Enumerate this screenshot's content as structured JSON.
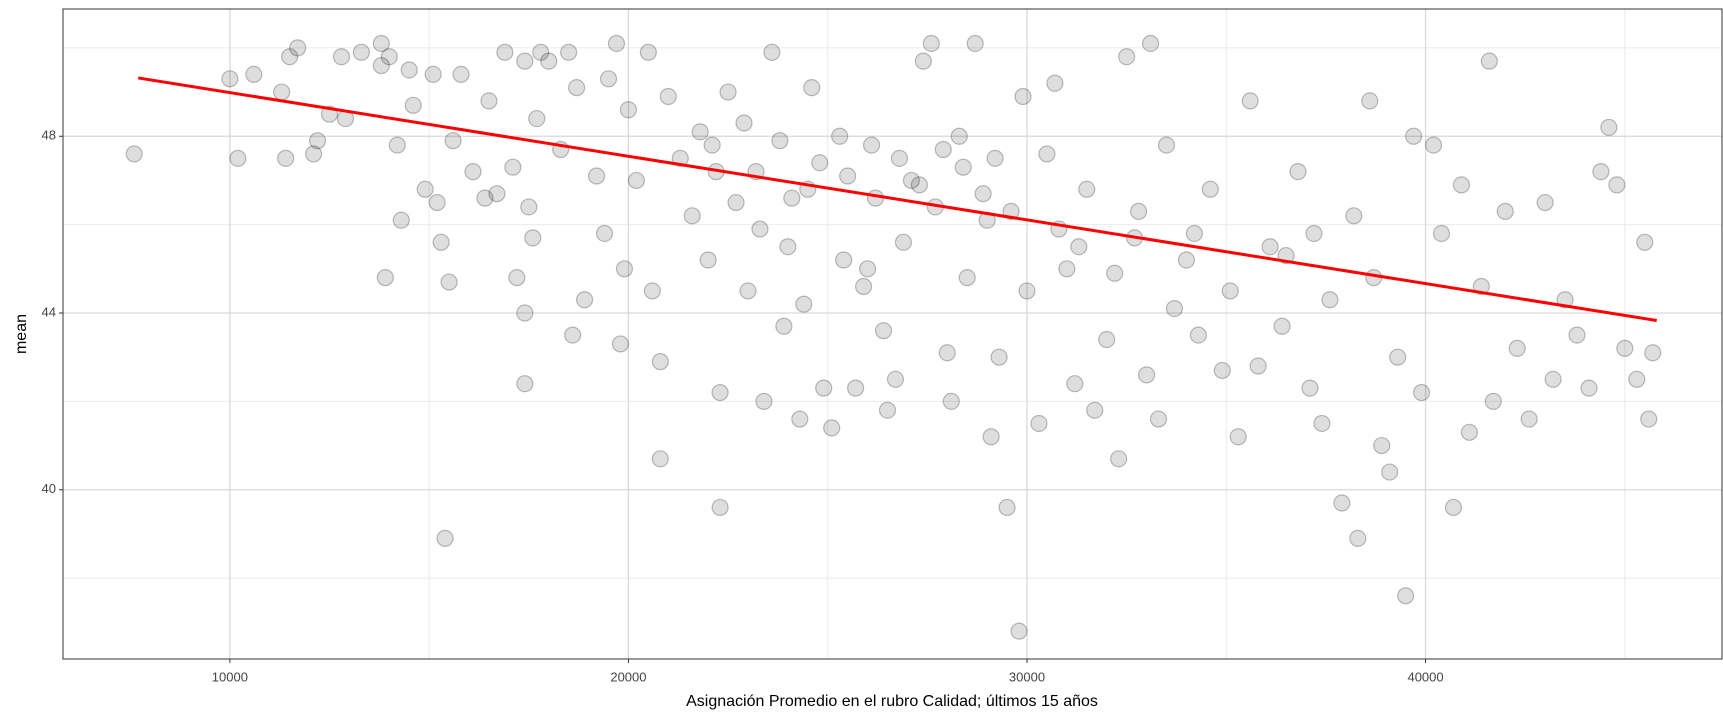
{
  "chart_data": {
    "type": "scatter",
    "xlabel": "Asignación Promedio en el rubro Calidad; últimos 15 años",
    "ylabel": "mean",
    "xlim": [
      5813,
      47438
    ],
    "ylim": [
      36.17,
      50.88
    ],
    "xticks": [
      10000,
      20000,
      30000,
      40000
    ],
    "yticks": [
      40,
      44,
      48
    ],
    "x_minor_grid": [
      15000,
      25000,
      35000,
      45000
    ],
    "y_minor_grid": [
      38,
      42,
      46,
      50
    ],
    "grid": true,
    "color": "#000000",
    "x": [
      7600,
      10000,
      10200,
      10600,
      11300,
      11400,
      11500,
      11700,
      12100,
      12200,
      12500,
      12800,
      12900,
      13300,
      13800,
      13800,
      13900,
      14000,
      14200,
      14300,
      14500,
      14600,
      14900,
      15100,
      15200,
      15300,
      15400,
      15500,
      15600,
      15800,
      16100,
      16400,
      16500,
      16700,
      16900,
      17100,
      17200,
      17400,
      17400,
      17400,
      17500,
      17600,
      17700,
      17800,
      18000,
      18300,
      18500,
      18600,
      18700,
      18900,
      19200,
      19400,
      19500,
      19700,
      19800,
      19900,
      20000,
      20200,
      20500,
      20600,
      20800,
      20800,
      21000,
      21300,
      21600,
      21800,
      22000,
      22200,
      22300,
      22300,
      22500,
      22700,
      22900,
      23000,
      23300,
      23400,
      23600,
      23800,
      23900,
      24100,
      24300,
      24400,
      24600,
      24800,
      24900,
      25100,
      25300,
      25400,
      25700,
      25900,
      26100,
      26400,
      26500,
      26700,
      26900,
      27100,
      27400,
      27600,
      27700,
      28000,
      28100,
      28300,
      28500,
      28700,
      29000,
      29100,
      29300,
      29500,
      29800,
      29900,
      30000,
      30300,
      30500,
      30700,
      31000,
      31200,
      31500,
      31700,
      32000,
      32200,
      32300,
      32500,
      32700,
      33000,
      33100,
      33300,
      33500,
      33700,
      34000,
      34300,
      34600,
      34900,
      35100,
      35300,
      35600,
      35800,
      36100,
      36400,
      36800,
      37100,
      37400,
      37600,
      37900,
      38200,
      38300,
      38600,
      38700,
      38900,
      39100,
      39300,
      39500,
      39700,
      39900,
      40200,
      40400,
      40700,
      40900,
      41100,
      41400,
      41600,
      41700,
      42000,
      42300,
      42600,
      43000,
      43200,
      43500,
      43800,
      44100,
      44400,
      44600,
      44800,
      45000,
      45300,
      45500,
      45600,
      45700,
      25500,
      26200,
      26800,
      27300,
      27900,
      28400,
      28900,
      29200,
      29600,
      24500,
      23200,
      22100,
      31300,
      32800,
      34200,
      36500,
      37200,
      30800,
      26000,
      24000
    ],
    "values": [
      47.6,
      49.3,
      47.5,
      49.4,
      49.0,
      47.5,
      49.8,
      50.0,
      47.6,
      47.9,
      48.5,
      49.8,
      48.4,
      49.9,
      49.6,
      50.1,
      44.8,
      49.8,
      47.8,
      46.1,
      49.5,
      48.7,
      46.8,
      49.4,
      46.5,
      45.6,
      38.9,
      44.7,
      47.9,
      49.4,
      47.2,
      46.6,
      48.8,
      46.7,
      49.9,
      47.3,
      44.8,
      49.7,
      44.0,
      42.4,
      46.4,
      45.7,
      48.4,
      49.9,
      49.7,
      47.7,
      49.9,
      43.5,
      49.1,
      44.3,
      47.1,
      45.8,
      49.3,
      50.1,
      43.3,
      45.0,
      48.6,
      47.0,
      49.9,
      44.5,
      42.9,
      40.7,
      48.9,
      47.5,
      46.2,
      48.1,
      45.2,
      47.2,
      42.2,
      39.6,
      49.0,
      46.5,
      48.3,
      44.5,
      45.9,
      42.0,
      49.9,
      47.9,
      43.7,
      46.6,
      41.6,
      44.2,
      49.1,
      47.4,
      42.3,
      41.4,
      48.0,
      45.2,
      42.3,
      44.6,
      47.8,
      43.6,
      41.8,
      42.5,
      45.6,
      47.0,
      49.7,
      50.1,
      46.4,
      43.1,
      42.0,
      48.0,
      44.8,
      50.1,
      46.1,
      41.2,
      43.0,
      39.6,
      36.8,
      48.9,
      44.5,
      41.5,
      47.6,
      49.2,
      45.0,
      42.4,
      46.8,
      41.8,
      43.4,
      44.9,
      40.7,
      49.8,
      45.7,
      42.6,
      50.1,
      41.6,
      47.8,
      44.1,
      45.2,
      43.5,
      46.8,
      42.7,
      44.5,
      41.2,
      48.8,
      42.8,
      45.5,
      43.7,
      47.2,
      42.3,
      41.5,
      44.3,
      39.7,
      46.2,
      38.9,
      48.8,
      44.8,
      41.0,
      40.4,
      43.0,
      37.6,
      48.0,
      42.2,
      47.8,
      45.8,
      39.6,
      46.9,
      41.3,
      44.6,
      49.7,
      42.0,
      46.3,
      43.2,
      41.6,
      46.5,
      42.5,
      44.3,
      43.5,
      42.3,
      47.2,
      48.2,
      46.9,
      43.2,
      42.5,
      45.6,
      41.6,
      43.1,
      47.1,
      46.6,
      47.5,
      46.9,
      47.7,
      47.3,
      46.7,
      47.5,
      46.3,
      46.8,
      47.2,
      47.8,
      45.5,
      46.3,
      45.8,
      45.3,
      45.8,
      45.9,
      45.0,
      45.5
    ],
    "trend": {
      "color": "#ff0000",
      "x": [
        7700,
        45800
      ],
      "values": [
        49.32,
        43.83
      ]
    }
  }
}
